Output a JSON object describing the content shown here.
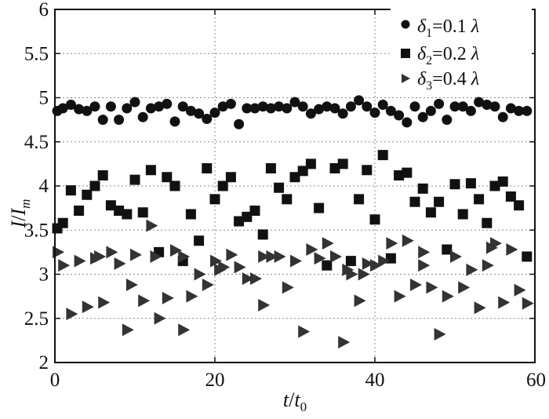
{
  "chart_data": {
    "type": "scatter",
    "xlim": [
      0,
      60
    ],
    "ylim": [
      2,
      6
    ],
    "xticks": [
      "0",
      "20",
      "40",
      "60"
    ],
    "yticks": [
      "2",
      "2.5",
      "3",
      "3.5",
      "4",
      "4.5",
      "5",
      "5.5",
      "6"
    ],
    "xlabel": {
      "main": "t",
      "sep": "/",
      "base": "t",
      "sub": "0"
    },
    "ylabel": {
      "main": "I",
      "sep": "/",
      "base": "I",
      "sub": "m"
    },
    "grid": true,
    "legend_position": "top-right",
    "series": [
      {
        "name": "δ1=0.1λ",
        "legend": {
          "symbol": "δ",
          "sub": "1",
          "value": "=0.1",
          "unit": "λ"
        },
        "marker": "circle",
        "x": [
          0.3,
          1,
          2,
          3,
          4,
          5,
          6,
          7,
          8,
          9,
          10,
          11,
          12,
          13,
          14,
          15,
          16,
          17,
          18,
          19,
          20,
          21,
          22,
          23,
          24,
          25,
          26,
          27,
          28,
          29,
          30,
          31,
          32,
          33,
          34,
          35,
          36,
          37,
          38,
          39,
          40,
          41,
          42,
          43,
          44,
          45,
          46,
          47,
          48,
          49,
          50,
          51,
          52,
          53,
          54,
          55,
          56,
          57,
          58,
          59
        ],
        "y": [
          4.85,
          4.88,
          4.92,
          4.87,
          4.85,
          4.9,
          4.75,
          4.9,
          4.75,
          4.88,
          4.95,
          4.78,
          4.88,
          4.9,
          4.93,
          4.73,
          4.9,
          4.85,
          4.82,
          4.76,
          4.83,
          4.9,
          4.93,
          4.7,
          4.88,
          4.88,
          4.9,
          4.88,
          4.9,
          4.88,
          4.95,
          4.9,
          4.82,
          4.87,
          4.9,
          4.88,
          4.82,
          4.9,
          4.97,
          4.9,
          4.83,
          4.92,
          4.85,
          4.8,
          4.72,
          4.9,
          4.78,
          4.85,
          4.93,
          4.75,
          4.9,
          4.9,
          4.85,
          4.95,
          4.92,
          4.9,
          4.78,
          4.88,
          4.85,
          4.85
        ]
      },
      {
        "name": "δ2=0.2λ",
        "legend": {
          "symbol": "δ",
          "sub": "2",
          "value": "=0.2",
          "unit": "λ"
        },
        "marker": "square",
        "x": [
          0.3,
          1,
          2,
          3,
          4,
          5,
          6,
          7,
          8,
          9,
          10,
          11,
          12,
          13,
          14,
          15,
          16,
          17,
          18,
          19,
          20,
          21,
          22,
          23,
          24,
          25,
          26,
          27,
          28,
          29,
          30,
          31,
          32,
          33,
          34,
          35,
          36,
          37,
          38,
          39,
          40,
          41,
          42,
          43,
          44,
          45,
          46,
          47,
          48,
          49,
          50,
          51,
          52,
          53,
          54,
          55,
          56,
          57,
          58,
          59
        ],
        "y": [
          3.52,
          3.58,
          3.95,
          3.72,
          3.9,
          4,
          4.12,
          3.78,
          3.72,
          3.68,
          4.07,
          3.7,
          4.18,
          3.25,
          4.1,
          4.0,
          3.15,
          3.68,
          3.38,
          4.2,
          3.85,
          4.0,
          4.1,
          3.6,
          3.65,
          3.72,
          3.45,
          4.2,
          3.98,
          3.85,
          4.1,
          4.17,
          4.25,
          3.75,
          3.1,
          4.2,
          4.25,
          3.15,
          3.85,
          4.18,
          3.62,
          4.35,
          3.18,
          4.12,
          4.15,
          3.82,
          3.97,
          3.7,
          3.82,
          3.28,
          4.02,
          3.68,
          4.03,
          3.85,
          3.58,
          4.0,
          4.05,
          3.88,
          3.78,
          3.2
        ]
      },
      {
        "name": "δ3=0.4λ",
        "legend": {
          "symbol": "δ",
          "sub": "3",
          "value": "=0.4",
          "unit": "λ"
        },
        "marker": "triangle",
        "x": [
          0.3,
          1,
          2,
          3,
          4,
          5,
          6,
          7,
          8,
          9,
          10,
          11,
          12,
          13,
          14,
          15,
          16,
          17,
          18,
          19,
          20,
          21,
          22,
          23,
          24,
          25,
          26,
          27,
          28,
          29,
          30,
          31,
          32,
          33,
          34,
          35,
          36,
          37,
          38,
          39,
          40,
          41,
          42,
          43,
          44,
          45,
          46,
          47,
          48,
          49,
          50,
          51,
          52,
          53,
          54,
          55,
          56,
          57,
          58,
          59,
          5.5,
          9.5,
          12.5,
          16,
          20.5,
          26,
          36.5,
          38.5,
          46,
          54.5
        ],
        "y": [
          3.25,
          3.1,
          2.55,
          3.15,
          2.63,
          3.18,
          2.68,
          3.25,
          3.12,
          2.37,
          3.22,
          2.7,
          3.55,
          2.5,
          2.73,
          3.27,
          2.37,
          2.75,
          3.0,
          2.88,
          3.15,
          3.08,
          3.22,
          3.08,
          2.95,
          2.95,
          2.65,
          3.2,
          3.2,
          2.85,
          3.15,
          2.35,
          3.28,
          3.18,
          3.35,
          3.2,
          2.23,
          3.0,
          2.7,
          3.12,
          3.1,
          3.15,
          3.35,
          2.75,
          3.38,
          2.88,
          3.25,
          2.85,
          2.32,
          2.75,
          3.2,
          2.85,
          3.05,
          2.62,
          3.1,
          3.35,
          2.68,
          3.28,
          2.82,
          2.67,
          3.2,
          2.88,
          3.2,
          3.2,
          3.05,
          3.2,
          3.05,
          3.0,
          3.1,
          3.3
        ]
      }
    ]
  }
}
